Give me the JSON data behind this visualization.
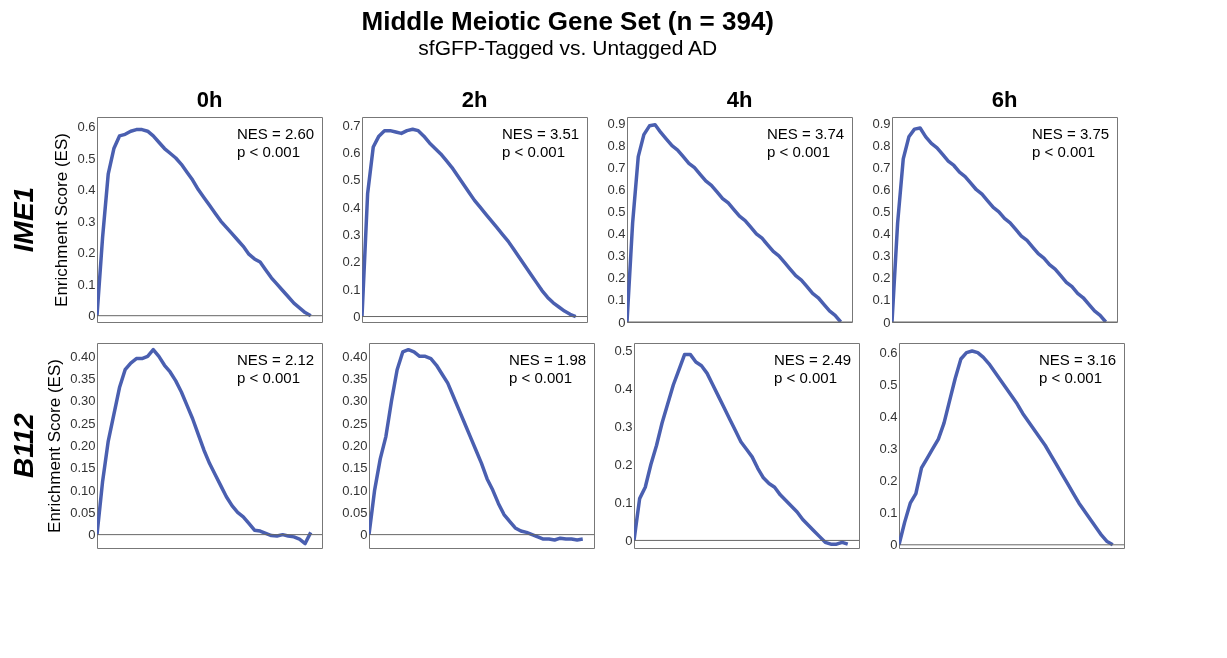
{
  "chart_data": [
    {
      "type": "other",
      "title": "Middle Meiotic Gene Set (n = 394)",
      "subtitle": "sfGFP-Tagged vs. Untagged AD"
    },
    {
      "type": "line",
      "title": "0h",
      "ylabel": "Enrichment Score (ES)",
      "annotations": [
        "IME1",
        "NES = 2.60",
        "p < 0.001"
      ],
      "categories": [
        null,
        null,
        null,
        null,
        null,
        null,
        null,
        null,
        null,
        null,
        null,
        null,
        null,
        null,
        null,
        null,
        null,
        null,
        null,
        null,
        null,
        null,
        null,
        null,
        null,
        null,
        null,
        null,
        null,
        null,
        null,
        null,
        null,
        null,
        null,
        null,
        null,
        null,
        null,
        null,
        null
      ],
      "ylim": [
        -0.02,
        0.63
      ],
      "yticks": [
        0,
        0.1,
        0.2,
        0.3,
        0.4,
        0.5,
        0.6
      ],
      "ref_lines": [
        {
          "axis": "y",
          "value": 0,
          "color": "#666666"
        }
      ],
      "series": [
        {
          "color": "#4a5fb0",
          "values": [
            0,
            0.25,
            0.45,
            0.53,
            0.57,
            0.575,
            0.585,
            0.59,
            0.59,
            0.585,
            0.57,
            0.55,
            0.53,
            0.515,
            0.5,
            0.48,
            0.455,
            0.43,
            0.4,
            0.375,
            0.35,
            0.325,
            0.3,
            0.28,
            0.26,
            0.24,
            0.22,
            0.195,
            0.18,
            0.17,
            0.145,
            0.12,
            0.1,
            0.08,
            0.06,
            0.04,
            0.025,
            0.01,
            0,
            null,
            null
          ]
        }
      ]
    },
    {
      "type": "line",
      "title": "2h",
      "annotations": [
        "NES = 3.51",
        "p < 0.001"
      ],
      "categories": [
        null,
        null,
        null,
        null,
        null,
        null,
        null,
        null,
        null,
        null,
        null,
        null,
        null,
        null,
        null,
        null,
        null,
        null,
        null,
        null,
        null,
        null,
        null,
        null,
        null,
        null,
        null,
        null,
        null,
        null,
        null,
        null,
        null,
        null,
        null,
        null,
        null,
        null,
        null,
        null,
        null
      ],
      "ylim": [
        -0.02,
        0.73
      ],
      "yticks": [
        0,
        0.1,
        0.2,
        0.3,
        0.4,
        0.5,
        0.6,
        0.7
      ],
      "ref_lines": [
        {
          "axis": "y",
          "value": 0,
          "color": "#666666"
        }
      ],
      "series": [
        {
          "color": "#4a5fb0",
          "values": [
            0,
            0.45,
            0.62,
            0.66,
            0.68,
            0.68,
            0.675,
            0.67,
            0.68,
            0.685,
            0.68,
            0.66,
            0.635,
            0.615,
            0.595,
            0.57,
            0.545,
            0.515,
            0.485,
            0.455,
            0.425,
            0.4,
            0.375,
            0.35,
            0.325,
            0.3,
            0.275,
            0.245,
            0.215,
            0.185,
            0.155,
            0.125,
            0.095,
            0.07,
            0.05,
            0.035,
            0.02,
            0.008,
            0,
            null,
            null
          ]
        }
      ]
    },
    {
      "type": "line",
      "title": "4h",
      "annotations": [
        "NES = 3.74",
        "p < 0.001"
      ],
      "categories": [
        null,
        null,
        null,
        null,
        null,
        null,
        null,
        null,
        null,
        null,
        null,
        null,
        null,
        null,
        null,
        null,
        null,
        null,
        null,
        null,
        null,
        null,
        null,
        null,
        null,
        null,
        null,
        null,
        null,
        null,
        null,
        null,
        null,
        null,
        null,
        null,
        null,
        null,
        null,
        null,
        null
      ],
      "ylim": [
        0,
        0.93
      ],
      "yticks": [
        0,
        0.1,
        0.2,
        0.3,
        0.4,
        0.5,
        0.6,
        0.7,
        0.8,
        0.9
      ],
      "ref_lines": [
        {
          "axis": "y",
          "value": 0,
          "color": "#666666"
        }
      ],
      "series": [
        {
          "color": "#4a5fb0",
          "values": [
            0,
            0.45,
            0.75,
            0.85,
            0.89,
            0.895,
            0.86,
            0.83,
            0.8,
            0.78,
            0.75,
            0.72,
            0.7,
            0.67,
            0.64,
            0.62,
            0.59,
            0.56,
            0.54,
            0.51,
            0.48,
            0.46,
            0.43,
            0.4,
            0.38,
            0.35,
            0.32,
            0.3,
            0.27,
            0.24,
            0.21,
            0.19,
            0.16,
            0.13,
            0.11,
            0.08,
            0.05,
            0.03,
            0,
            null,
            null
          ]
        }
      ]
    },
    {
      "type": "line",
      "title": "6h",
      "annotations": [
        "NES = 3.75",
        "p < 0.001"
      ],
      "categories": [
        null,
        null,
        null,
        null,
        null,
        null,
        null,
        null,
        null,
        null,
        null,
        null,
        null,
        null,
        null,
        null,
        null,
        null,
        null,
        null,
        null,
        null,
        null,
        null,
        null,
        null,
        null,
        null,
        null,
        null,
        null,
        null,
        null,
        null,
        null,
        null,
        null,
        null,
        null,
        null,
        null
      ],
      "ylim": [
        0,
        0.93
      ],
      "yticks": [
        0,
        0.1,
        0.2,
        0.3,
        0.4,
        0.5,
        0.6,
        0.7,
        0.8,
        0.9
      ],
      "ref_lines": [
        {
          "axis": "y",
          "value": 0,
          "color": "#666666"
        }
      ],
      "series": [
        {
          "color": "#4a5fb0",
          "values": [
            0,
            0.45,
            0.74,
            0.84,
            0.875,
            0.88,
            0.84,
            0.81,
            0.79,
            0.76,
            0.73,
            0.71,
            0.68,
            0.66,
            0.63,
            0.6,
            0.58,
            0.55,
            0.52,
            0.5,
            0.47,
            0.45,
            0.42,
            0.39,
            0.37,
            0.34,
            0.31,
            0.29,
            0.26,
            0.24,
            0.21,
            0.18,
            0.16,
            0.13,
            0.11,
            0.08,
            0.05,
            0.03,
            0,
            null,
            null
          ]
        }
      ]
    },
    {
      "type": "line",
      "ylabel": "Enrichment Score (ES)",
      "annotations": [
        "B112",
        "NES = 2.12",
        "p < 0.001"
      ],
      "categories": [
        null,
        null,
        null,
        null,
        null,
        null,
        null,
        null,
        null,
        null,
        null,
        null,
        null,
        null,
        null,
        null,
        null,
        null,
        null,
        null,
        null,
        null,
        null,
        null,
        null,
        null,
        null,
        null,
        null,
        null,
        null,
        null,
        null,
        null,
        null,
        null,
        null,
        null,
        null,
        null,
        null
      ],
      "ylim": [
        -0.03,
        0.43
      ],
      "yticks": [
        0,
        0.05,
        {
          "value": 0.1,
          "label": "0.10"
        },
        0.15,
        {
          "value": 0.2,
          "label": "0.20"
        },
        0.25,
        {
          "value": 0.3,
          "label": "0.30"
        },
        0.35,
        {
          "value": 0.4,
          "label": "0.40"
        }
      ],
      "ref_lines": [
        {
          "axis": "y",
          "value": 0,
          "color": "#666666"
        }
      ],
      "series": [
        {
          "color": "#4a5fb0",
          "values": [
            0,
            0.12,
            0.21,
            0.27,
            0.33,
            0.37,
            0.385,
            0.395,
            0.395,
            0.4,
            0.415,
            0.4,
            0.38,
            0.365,
            0.345,
            0.32,
            0.29,
            0.26,
            0.225,
            0.19,
            0.16,
            0.135,
            0.11,
            0.085,
            0.065,
            0.05,
            0.04,
            0.025,
            0.01,
            0.008,
            0.003,
            -0.002,
            -0.003,
            0,
            -0.003,
            -0.005,
            -0.01,
            -0.02,
            0.005,
            null,
            null
          ]
        }
      ]
    },
    {
      "type": "line",
      "annotations": [
        "NES = 1.98",
        "p < 0.001"
      ],
      "categories": [
        null,
        null,
        null,
        null,
        null,
        null,
        null,
        null,
        null,
        null,
        null,
        null,
        null,
        null,
        null,
        null,
        null,
        null,
        null,
        null,
        null,
        null,
        null,
        null,
        null,
        null,
        null,
        null,
        null,
        null,
        null,
        null,
        null,
        null,
        null,
        null,
        null,
        null,
        null,
        null,
        null
      ],
      "ylim": [
        -0.03,
        0.43
      ],
      "yticks": [
        0,
        0.05,
        {
          "value": 0.1,
          "label": "0.10"
        },
        0.15,
        {
          "value": 0.2,
          "label": "0.20"
        },
        0.25,
        {
          "value": 0.3,
          "label": "0.30"
        },
        0.35,
        {
          "value": 0.4,
          "label": "0.40"
        }
      ],
      "ref_lines": [
        {
          "axis": "y",
          "value": 0,
          "color": "#666666"
        }
      ],
      "series": [
        {
          "color": "#4a5fb0",
          "values": [
            0,
            0.1,
            0.17,
            0.22,
            0.3,
            0.37,
            0.41,
            0.415,
            0.41,
            0.4,
            0.4,
            0.395,
            0.38,
            0.36,
            0.34,
            0.31,
            0.28,
            0.25,
            0.22,
            0.19,
            0.16,
            0.125,
            0.1,
            0.07,
            0.045,
            0.03,
            0.015,
            0.008,
            0.005,
            0,
            -0.005,
            -0.01,
            -0.01,
            -0.012,
            -0.008,
            -0.01,
            -0.01,
            -0.012,
            -0.01,
            null,
            null
          ]
        }
      ]
    },
    {
      "type": "line",
      "annotations": [
        "NES = 2.49",
        "p < 0.001"
      ],
      "categories": [
        null,
        null,
        null,
        null,
        null,
        null,
        null,
        null,
        null,
        null,
        null,
        null,
        null,
        null,
        null,
        null,
        null,
        null,
        null,
        null,
        null,
        null,
        null,
        null,
        null,
        null,
        null,
        null,
        null,
        null,
        null,
        null,
        null,
        null,
        null,
        null,
        null,
        null,
        null,
        null,
        null
      ],
      "ylim": [
        -0.02,
        0.52
      ],
      "yticks": [
        0,
        0.1,
        0.2,
        0.3,
        0.4,
        0.5
      ],
      "ref_lines": [
        {
          "axis": "y",
          "value": 0,
          "color": "#666666"
        }
      ],
      "series": [
        {
          "color": "#4a5fb0",
          "values": [
            0,
            0.11,
            0.14,
            0.2,
            0.25,
            0.31,
            0.36,
            0.41,
            0.45,
            0.49,
            0.49,
            0.47,
            0.46,
            0.44,
            0.41,
            0.38,
            0.35,
            0.32,
            0.29,
            0.26,
            0.24,
            0.22,
            0.19,
            0.165,
            0.15,
            0.14,
            0.12,
            0.105,
            0.09,
            0.075,
            0.055,
            0.04,
            0.025,
            0.01,
            -0.005,
            -0.01,
            -0.01,
            -0.005,
            -0.01,
            null,
            null
          ]
        }
      ]
    },
    {
      "type": "line",
      "annotations": [
        "NES = 3.16",
        "p < 0.001"
      ],
      "categories": [
        null,
        null,
        null,
        null,
        null,
        null,
        null,
        null,
        null,
        null,
        null,
        null,
        null,
        null,
        null,
        null,
        null,
        null,
        null,
        null,
        null,
        null,
        null,
        null,
        null,
        null,
        null,
        null,
        null,
        null,
        null,
        null,
        null,
        null,
        null,
        null,
        null,
        null,
        null,
        null,
        null
      ],
      "ylim": [
        -0.01,
        0.63
      ],
      "yticks": [
        0,
        0.1,
        0.2,
        0.3,
        0.4,
        0.5,
        0.6
      ],
      "ref_lines": [
        {
          "axis": "y",
          "value": 0,
          "color": "#666666"
        }
      ],
      "series": [
        {
          "color": "#4a5fb0",
          "values": [
            0,
            0.07,
            0.13,
            0.16,
            0.24,
            0.27,
            0.3,
            0.33,
            0.38,
            0.45,
            0.52,
            0.58,
            0.6,
            0.605,
            0.6,
            0.585,
            0.565,
            0.54,
            0.515,
            0.49,
            0.465,
            0.44,
            0.41,
            0.385,
            0.36,
            0.335,
            0.31,
            0.28,
            0.25,
            0.22,
            0.19,
            0.16,
            0.13,
            0.105,
            0.08,
            0.055,
            0.03,
            0.01,
            0,
            null,
            null
          ]
        }
      ]
    }
  ]
}
